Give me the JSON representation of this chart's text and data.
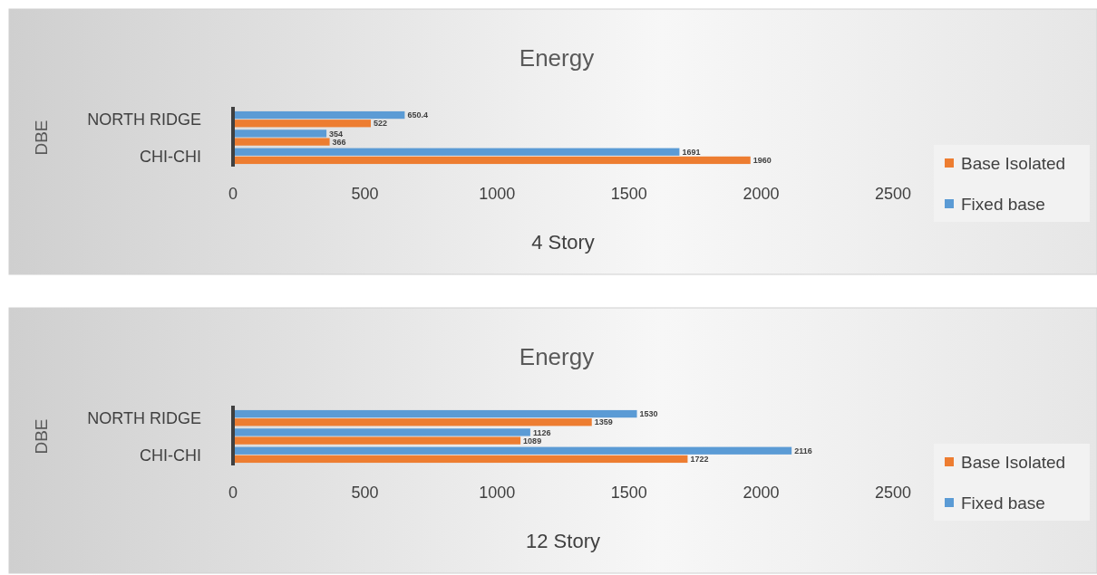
{
  "chart_data": [
    {
      "type": "bar",
      "orientation": "horizontal",
      "title": "Energy",
      "xlabel": "4 Story",
      "ylabel": "DBE",
      "categories": [
        "NORTH RIDGE",
        null,
        "CHI-CHI"
      ],
      "series": [
        {
          "name": "Base Isolated",
          "color": "#ed7d31",
          "values": [
            522,
            366,
            1960
          ]
        },
        {
          "name": "Fixed base",
          "color": "#5b9bd5",
          "values": [
            650.4,
            354,
            1691
          ]
        }
      ],
      "xlim": [
        0,
        2500
      ],
      "xticks": [
        0,
        500,
        1000,
        1500,
        2000,
        2500
      ],
      "data_labels": true,
      "legend": "right",
      "grid": false
    },
    {
      "type": "bar",
      "orientation": "horizontal",
      "title": "Energy",
      "xlabel": "12 Story",
      "ylabel": "DBE",
      "categories": [
        "NORTH RIDGE",
        null,
        "CHI-CHI"
      ],
      "series": [
        {
          "name": "Base Isolated",
          "color": "#ed7d31",
          "values": [
            1359,
            1089,
            1722
          ]
        },
        {
          "name": "Fixed base",
          "color": "#5b9bd5",
          "values": [
            1530,
            1126,
            2116
          ]
        }
      ],
      "xlim": [
        0,
        2500
      ],
      "xticks": [
        0,
        500,
        1000,
        1500,
        2000,
        2500
      ],
      "data_labels": true,
      "legend": "right",
      "grid": false
    }
  ]
}
